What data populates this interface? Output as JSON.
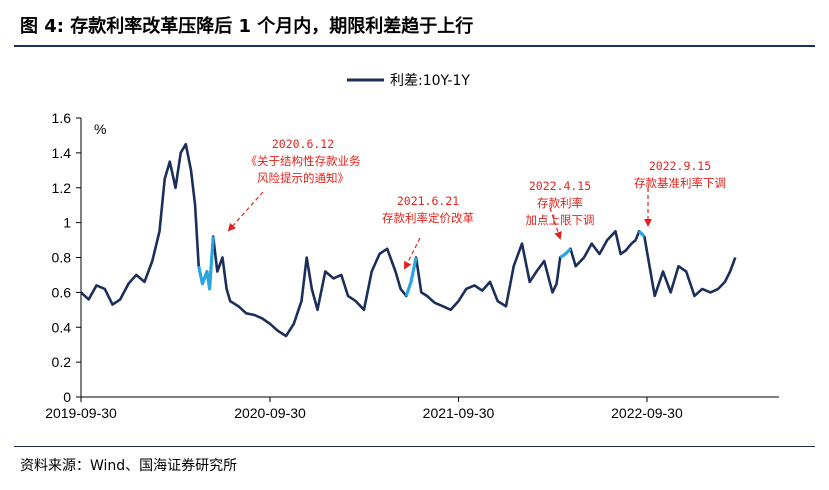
{
  "figure": {
    "title": "图 4:  存款利率改革压降后 1 个月内，期限利差趋于上行",
    "source": "资料来源：Wind、国海证券研究所"
  },
  "chart_data": {
    "type": "line",
    "unit_label": "%",
    "ylim": [
      0,
      1.6
    ],
    "yticks": [
      "0",
      "0.2",
      "0.4",
      "0.6",
      "0.8",
      "1",
      "1.2",
      "1.4",
      "1.6"
    ],
    "x_tick_labels": [
      "2019-09-30",
      "2020-09-30",
      "2021-09-30",
      "2022-09-30"
    ],
    "grid": false,
    "legend_position": "top-center",
    "colors": {
      "main": "#1c2e5a",
      "highlight": "#29a6df",
      "annotation": "#e3221b"
    },
    "series": [
      {
        "name": "利差:10Y-1Y",
        "x": [
          "2019-09-30",
          "2019-10-15",
          "2019-10-30",
          "2019-11-15",
          "2019-11-30",
          "2019-12-15",
          "2019-12-31",
          "2020-01-15",
          "2020-01-31",
          "2020-02-15",
          "2020-02-29",
          "2020-03-10",
          "2020-03-20",
          "2020-03-31",
          "2020-04-10",
          "2020-04-20",
          "2020-04-30",
          "2020-05-08",
          "2020-05-15",
          "2020-05-22",
          "2020-05-31",
          "2020-06-05",
          "2020-06-12",
          "2020-06-20",
          "2020-06-30",
          "2020-07-08",
          "2020-07-15",
          "2020-07-31",
          "2020-08-15",
          "2020-08-31",
          "2020-09-15",
          "2020-09-30",
          "2020-10-15",
          "2020-10-31",
          "2020-11-15",
          "2020-11-30",
          "2020-12-10",
          "2020-12-20",
          "2020-12-31",
          "2021-01-15",
          "2021-01-31",
          "2021-02-15",
          "2021-02-28",
          "2021-03-15",
          "2021-03-31",
          "2021-04-15",
          "2021-04-30",
          "2021-05-15",
          "2021-05-31",
          "2021-06-10",
          "2021-06-21",
          "2021-06-30",
          "2021-07-10",
          "2021-07-20",
          "2021-07-31",
          "2021-08-15",
          "2021-08-31",
          "2021-09-15",
          "2021-09-30",
          "2021-10-15",
          "2021-10-31",
          "2021-11-15",
          "2021-11-30",
          "2021-12-15",
          "2021-12-31",
          "2022-01-15",
          "2022-01-31",
          "2022-02-15",
          "2022-02-28",
          "2022-03-15",
          "2022-03-31",
          "2022-04-08",
          "2022-04-15",
          "2022-04-25",
          "2022-05-05",
          "2022-05-15",
          "2022-05-31",
          "2022-06-15",
          "2022-06-30",
          "2022-07-15",
          "2022-07-31",
          "2022-08-10",
          "2022-08-20",
          "2022-08-31",
          "2022-09-08",
          "2022-09-15",
          "2022-09-25",
          "2022-10-15",
          "2022-10-31",
          "2022-11-15",
          "2022-11-30",
          "2022-12-15",
          "2022-12-31",
          "2023-01-15",
          "2023-01-31",
          "2023-02-15",
          "2023-02-28",
          "2023-03-10",
          "2023-03-20"
        ],
        "values": [
          0.6,
          0.56,
          0.64,
          0.62,
          0.53,
          0.56,
          0.65,
          0.7,
          0.66,
          0.78,
          0.95,
          1.25,
          1.35,
          1.2,
          1.4,
          1.45,
          1.3,
          1.1,
          0.75,
          0.65,
          0.72,
          0.62,
          0.92,
          0.72,
          0.8,
          0.62,
          0.55,
          0.52,
          0.48,
          0.47,
          0.45,
          0.42,
          0.38,
          0.35,
          0.42,
          0.55,
          0.8,
          0.62,
          0.5,
          0.72,
          0.68,
          0.7,
          0.58,
          0.55,
          0.5,
          0.72,
          0.82,
          0.85,
          0.72,
          0.62,
          0.58,
          0.66,
          0.8,
          0.6,
          0.58,
          0.54,
          0.52,
          0.5,
          0.55,
          0.62,
          0.64,
          0.61,
          0.66,
          0.55,
          0.52,
          0.75,
          0.88,
          0.66,
          0.72,
          0.78,
          0.6,
          0.65,
          0.8,
          0.82,
          0.85,
          0.75,
          0.8,
          0.88,
          0.82,
          0.9,
          0.95,
          0.82,
          0.84,
          0.88,
          0.9,
          0.95,
          0.92,
          0.58,
          0.72,
          0.6,
          0.75,
          0.72,
          0.58,
          0.62,
          0.6,
          0.62,
          0.66,
          0.72,
          0.8
        ]
      }
    ],
    "highlights": [
      {
        "from": "2020-05-15",
        "to": "2020-06-12"
      },
      {
        "from": "2021-06-21",
        "to": "2021-07-10"
      },
      {
        "from": "2022-04-15",
        "to": "2022-05-05"
      },
      {
        "from": "2022-09-15",
        "to": "2022-09-25"
      }
    ],
    "annotations": [
      {
        "lines": [
          "2020.6.12",
          "《关于结构性存款业务",
          "风险提示的通知》"
        ]
      },
      {
        "lines": [
          "2021.6.21",
          "存款利率定价改革"
        ]
      },
      {
        "lines": [
          "2022.4.15",
          "存款利率",
          "加点上限下调"
        ]
      },
      {
        "lines": [
          "2022.9.15",
          "存款基准利率下调"
        ]
      }
    ]
  }
}
